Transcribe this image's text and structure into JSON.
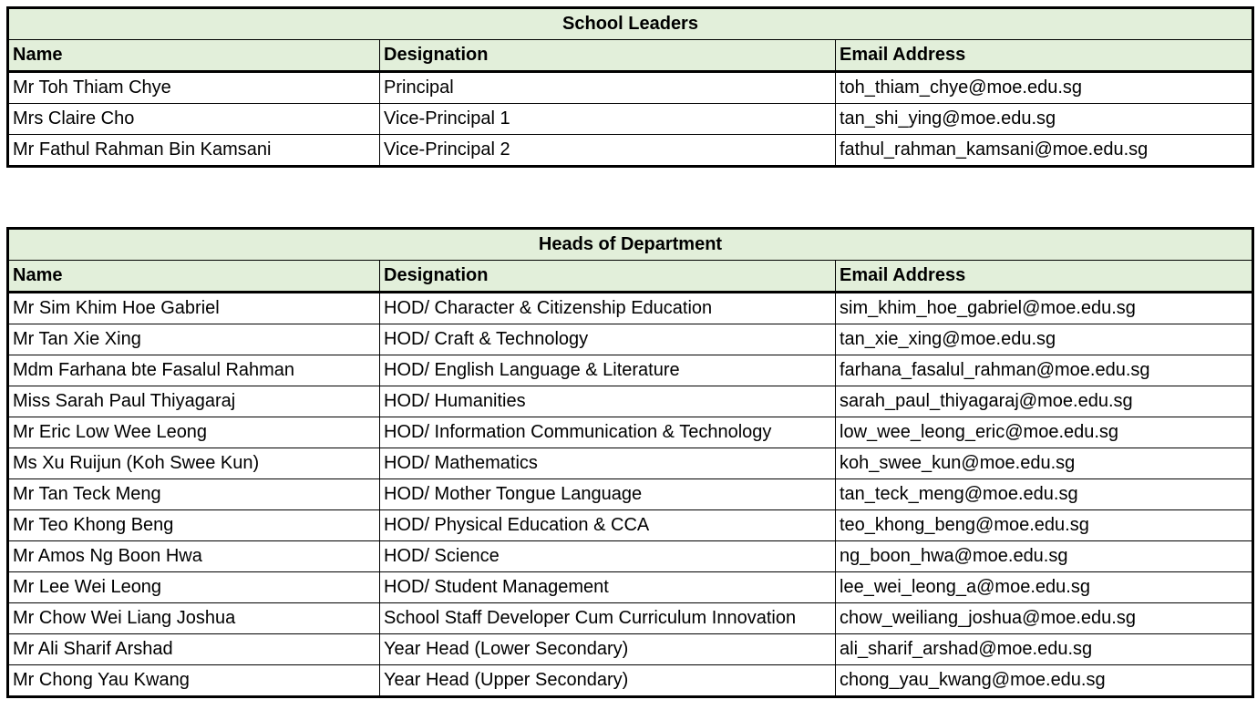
{
  "columns": {
    "name": "Name",
    "designation": "Designation",
    "email": "Email Address"
  },
  "leaders": {
    "title": "School Leaders",
    "rows": [
      {
        "name": "Mr Toh Thiam Chye",
        "designation": "Principal",
        "email": "toh_thiam_chye@moe.edu.sg"
      },
      {
        "name": "Mrs Claire Cho",
        "designation": "Vice-Principal 1",
        "email": "tan_shi_ying@moe.edu.sg"
      },
      {
        "name": "Mr Fathul Rahman Bin Kamsani",
        "designation": "Vice-Principal 2",
        "email": "fathul_rahman_kamsani@moe.edu.sg"
      }
    ]
  },
  "hods": {
    "title": "Heads of Department",
    "rows": [
      {
        "name": "Mr Sim Khim Hoe Gabriel",
        "designation": "HOD/ Character & Citizenship Education",
        "email": "sim_khim_hoe_gabriel@moe.edu.sg"
      },
      {
        "name": "Mr Tan Xie Xing",
        "designation": "HOD/ Craft & Technology",
        "email": "tan_xie_xing@moe.edu.sg"
      },
      {
        "name": "Mdm Farhana bte Fasalul Rahman",
        "designation": "HOD/ English Language & Literature",
        "email": "farhana_fasalul_rahman@moe.edu.sg"
      },
      {
        "name": "Miss Sarah Paul Thiyagaraj",
        "designation": "HOD/ Humanities",
        "email": "sarah_paul_thiyagaraj@moe.edu.sg"
      },
      {
        "name": "Mr Eric Low Wee Leong",
        "designation": "HOD/ Information Communication & Technology",
        "email": "low_wee_leong_eric@moe.edu.sg"
      },
      {
        "name": "Ms Xu Ruijun (Koh Swee Kun)",
        "designation": "HOD/ Mathematics",
        "email": "koh_swee_kun@moe.edu.sg"
      },
      {
        "name": "Mr Tan Teck Meng",
        "designation": "HOD/ Mother Tongue Language",
        "email": "tan_teck_meng@moe.edu.sg"
      },
      {
        "name": "Mr Teo Khong Beng",
        "designation": "HOD/ Physical Education & CCA",
        "email": "teo_khong_beng@moe.edu.sg"
      },
      {
        "name": "Mr Amos Ng Boon Hwa",
        "designation": "HOD/ Science",
        "email": "ng_boon_hwa@moe.edu.sg"
      },
      {
        "name": "Mr Lee Wei Leong",
        "designation": "HOD/ Student Management",
        "email": "lee_wei_leong_a@moe.edu.sg"
      },
      {
        "name": "Mr Chow Wei Liang Joshua",
        "designation": "School Staff Developer Cum Curriculum Innovation",
        "email": "chow_weiliang_joshua@moe.edu.sg"
      },
      {
        "name": "Mr Ali Sharif Arshad",
        "designation": "Year Head (Lower Secondary)",
        "email": "ali_sharif_arshad@moe.edu.sg"
      },
      {
        "name": "Mr Chong Yau Kwang",
        "designation": "Year Head (Upper Secondary)",
        "email": "chong_yau_kwang@moe.edu.sg"
      }
    ]
  },
  "colors": {
    "header_fill": "#e2efda",
    "border": "#000000"
  }
}
